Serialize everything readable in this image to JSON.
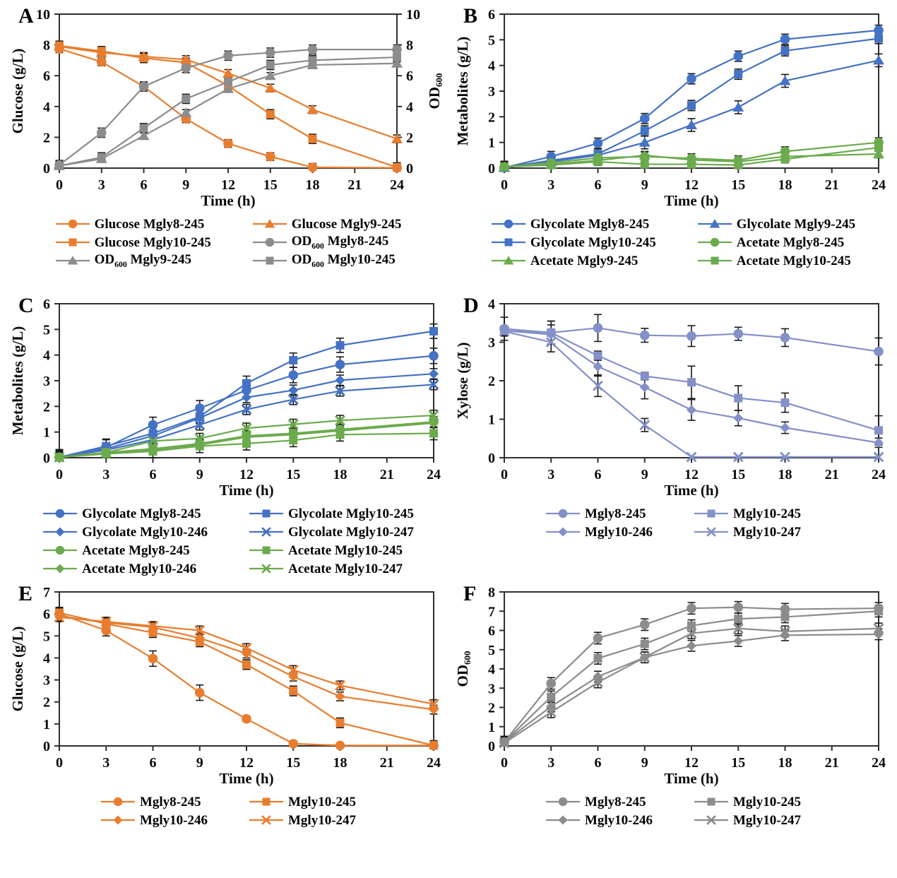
{
  "figure": {
    "background": "#FFFFFF",
    "description": "Six-panel fermentation time-course figure",
    "panel_letters": [
      "A",
      "B",
      "C",
      "D",
      "E",
      "F"
    ]
  },
  "colors": {
    "orange": "#E87D30",
    "gray": "#8C8C8C",
    "blue": "#4472C4",
    "green": "#6BAB4D",
    "periwinkle": "#8490C8",
    "error_bar": "#1A1A1A",
    "axis": "#2F2F2F"
  },
  "chart_data": [
    {
      "panel": "A",
      "type": "line",
      "xlabel": "Time (h)",
      "ylabel": "Glucose (g/L)",
      "ylabel_right": "OD600",
      "x": [
        0,
        3,
        6,
        9,
        12,
        15,
        18,
        24
      ],
      "xticks": [
        0,
        3,
        6,
        9,
        12,
        15,
        18,
        21,
        24
      ],
      "xlim": [
        0,
        24
      ],
      "ylim": [
        0,
        10
      ],
      "yticks": [
        0,
        2,
        4,
        6,
        8,
        10
      ],
      "right_axis": true,
      "grid": false,
      "legend_position": "bottom",
      "legend_cols": 2,
      "series": [
        {
          "name": "Glucose Mgly8-245",
          "color": "orange",
          "marker": "circle",
          "err": 0.25,
          "values": [
            7.75,
            6.9,
            5.3,
            3.2,
            1.6,
            0.75,
            0.05,
            0.02
          ]
        },
        {
          "name": "Glucose Mgly9-245",
          "color": "orange",
          "marker": "triangle",
          "err": 0.25,
          "values": [
            7.9,
            7.5,
            7.25,
            7.05,
            6.15,
            5.2,
            3.8,
            1.9
          ]
        },
        {
          "name": "Glucose Mgly10-245",
          "color": "orange",
          "marker": "square",
          "err": 0.3,
          "values": [
            7.95,
            7.6,
            7.15,
            6.85,
            5.35,
            3.5,
            1.9,
            0.05
          ]
        },
        {
          "name": "OD600 Mgly8-245",
          "color": "gray",
          "marker": "circle",
          "err": 0.3,
          "values": [
            0.2,
            2.3,
            5.3,
            6.5,
            7.3,
            7.5,
            7.7,
            7.7
          ]
        },
        {
          "name": "OD600 Mgly9-245",
          "color": "gray",
          "marker": "triangle",
          "err": 0.2,
          "values": [
            0.15,
            0.6,
            2.1,
            3.6,
            5.15,
            6.0,
            6.7,
            6.8
          ]
        },
        {
          "name": "OD600 Mgly10-245",
          "color": "gray",
          "marker": "square",
          "err": 0.3,
          "values": [
            0.15,
            0.7,
            2.6,
            4.5,
            5.6,
            6.7,
            7.0,
            7.2
          ]
        }
      ]
    },
    {
      "panel": "B",
      "type": "line",
      "xlabel": "Time (h)",
      "ylabel": "Metabolites (g/L)",
      "x": [
        0,
        3,
        6,
        9,
        12,
        15,
        18,
        24
      ],
      "xticks": [
        0,
        3,
        6,
        9,
        12,
        15,
        18,
        21,
        24
      ],
      "xlim": [
        0,
        24
      ],
      "ylim": [
        0,
        6
      ],
      "yticks": [
        0,
        1,
        2,
        3,
        4,
        5,
        6
      ],
      "right_axis": false,
      "grid": false,
      "legend_position": "bottom",
      "legend_cols": 2,
      "series": [
        {
          "name": "Glycolate Mgly8-245",
          "color": "blue",
          "marker": "circle",
          "err": 0.2,
          "values": [
            0.02,
            0.45,
            0.97,
            1.93,
            3.48,
            4.36,
            5.02,
            5.37
          ]
        },
        {
          "name": "Glycolate Mgly9-245",
          "color": "blue",
          "marker": "triangle",
          "err": 0.25,
          "values": [
            0.02,
            0.25,
            0.5,
            1.0,
            1.68,
            2.37,
            3.4,
            4.2
          ]
        },
        {
          "name": "Glycolate Mgly10-245",
          "color": "blue",
          "marker": "square",
          "err": 0.2,
          "values": [
            0.02,
            0.3,
            0.55,
            1.45,
            2.44,
            3.66,
            4.57,
            5.05
          ]
        },
        {
          "name": "Acetate Mgly8-245",
          "color": "green",
          "marker": "circle",
          "err": 0.18,
          "values": [
            0.05,
            0.2,
            0.4,
            0.45,
            0.38,
            0.3,
            0.65,
            1.0
          ]
        },
        {
          "name": "Acetate Mgly9-245",
          "color": "green",
          "marker": "triangle",
          "err": 0.15,
          "values": [
            0.05,
            0.15,
            0.3,
            0.5,
            0.32,
            0.25,
            0.45,
            0.55
          ]
        },
        {
          "name": "Acetate Mgly10-245",
          "color": "green",
          "marker": "square",
          "err": 0.15,
          "values": [
            0.05,
            0.12,
            0.25,
            0.15,
            0.15,
            0.12,
            0.35,
            0.8
          ]
        }
      ]
    },
    {
      "panel": "C",
      "type": "line",
      "xlabel": "Time (h)",
      "ylabel": "Metabolites (g/L)",
      "x": [
        0,
        3,
        6,
        9,
        12,
        15,
        18,
        24
      ],
      "xticks": [
        0,
        3,
        6,
        9,
        12,
        15,
        18,
        21,
        24
      ],
      "xlim": [
        0,
        24
      ],
      "ylim": [
        0,
        6
      ],
      "yticks": [
        0,
        1,
        2,
        3,
        4,
        5,
        6
      ],
      "right_axis": false,
      "grid": false,
      "legend_position": "bottom",
      "legend_cols": 2,
      "series": [
        {
          "name": "Glycolate Mgly8-245",
          "color": "blue",
          "marker": "circle",
          "err": 0.3,
          "values": [
            0.02,
            0.4,
            1.28,
            1.93,
            2.63,
            3.22,
            3.63,
            3.97
          ]
        },
        {
          "name": "Glycolate Mgly10-245",
          "color": "blue",
          "marker": "square",
          "err": 0.28,
          "values": [
            0.02,
            0.45,
            0.95,
            1.6,
            2.9,
            3.8,
            4.38,
            4.93
          ]
        },
        {
          "name": "Glycolate Mgly10-246",
          "color": "blue",
          "marker": "diamond",
          "err": 0.2,
          "values": [
            0.02,
            0.35,
            0.85,
            1.55,
            2.35,
            2.63,
            3.02,
            3.27
          ]
        },
        {
          "name": "Glycolate Mgly10-247",
          "color": "blue",
          "marker": "x",
          "err": 0.2,
          "values": [
            0.02,
            0.3,
            0.7,
            1.28,
            1.88,
            2.27,
            2.6,
            2.85
          ]
        },
        {
          "name": "Acetate Mgly8-245",
          "color": "green",
          "marker": "circle",
          "err": 0.2,
          "values": [
            0.02,
            0.2,
            0.35,
            0.55,
            0.85,
            0.95,
            1.1,
            1.4
          ]
        },
        {
          "name": "Acetate Mgly10-245",
          "color": "green",
          "marker": "square",
          "err": 0.25,
          "values": [
            0.02,
            0.15,
            0.25,
            0.45,
            0.55,
            0.68,
            0.9,
            0.95
          ]
        },
        {
          "name": "Acetate Mgly10-246",
          "color": "green",
          "marker": "diamond",
          "err": 0.18,
          "values": [
            0.02,
            0.18,
            0.3,
            0.5,
            0.8,
            0.9,
            1.05,
            1.35
          ]
        },
        {
          "name": "Acetate Mgly10-247",
          "color": "green",
          "marker": "x",
          "err": 0.2,
          "values": [
            0.02,
            0.2,
            0.65,
            0.75,
            1.15,
            1.3,
            1.45,
            1.65
          ]
        }
      ]
    },
    {
      "panel": "D",
      "type": "line",
      "xlabel": "Time (h)",
      "ylabel": "Xylose (g/L)",
      "x": [
        0,
        3,
        6,
        9,
        12,
        15,
        18,
        24
      ],
      "xticks": [
        0,
        3,
        6,
        9,
        12,
        15,
        18,
        21,
        24
      ],
      "xlim": [
        0,
        24
      ],
      "ylim": [
        0,
        4
      ],
      "yticks": [
        0,
        1,
        2,
        3,
        4
      ],
      "right_axis": false,
      "grid": false,
      "legend_position": "bottom",
      "legend_cols": 2,
      "series": [
        {
          "name": "Mgly8-245",
          "color": "periwinkle",
          "marker": "circle",
          "err": [
            0.3,
            0.3,
            0.35,
            0.18,
            0.27,
            0.17,
            0.23,
            0.35
          ],
          "values": [
            3.35,
            3.25,
            3.37,
            3.18,
            3.16,
            3.22,
            3.12,
            2.76
          ]
        },
        {
          "name": "Mgly10-245",
          "color": "periwinkle",
          "marker": "square",
          "err": [
            0.12,
            0.3,
            0.12,
            0.1,
            0.42,
            0.32,
            0.25,
            0.38
          ],
          "values": [
            3.3,
            3.25,
            2.65,
            2.12,
            1.96,
            1.55,
            1.43,
            0.71
          ]
        },
        {
          "name": "Mgly10-246",
          "color": "periwinkle",
          "marker": "diamond",
          "err": [
            0.1,
            0.25,
            0.25,
            0.3,
            0.27,
            0.2,
            0.15,
            0.12
          ],
          "values": [
            3.3,
            3.2,
            2.37,
            1.83,
            1.24,
            1.03,
            0.78,
            0.39
          ]
        },
        {
          "name": "Mgly10-247",
          "color": "periwinkle",
          "marker": "x",
          "err": [
            0.12,
            0.25,
            0.28,
            0.17,
            0,
            0,
            0,
            0
          ],
          "values": [
            3.28,
            3.0,
            1.87,
            0.85,
            0.02,
            0.02,
            0.02,
            0.02
          ]
        }
      ]
    },
    {
      "panel": "E",
      "type": "line",
      "xlabel": "Time (h)",
      "ylabel": "Glucose (g/L)",
      "x": [
        0,
        3,
        6,
        9,
        12,
        15,
        18,
        24
      ],
      "xticks": [
        0,
        3,
        6,
        9,
        12,
        15,
        18,
        21,
        24
      ],
      "xlim": [
        0,
        24
      ],
      "ylim": [
        0,
        7
      ],
      "yticks": [
        0,
        1,
        2,
        3,
        4,
        5,
        6,
        7
      ],
      "right_axis": false,
      "grid": false,
      "legend_position": "bottom",
      "legend_cols": 2,
      "series": [
        {
          "name": "Mgly8-245",
          "color": "orange",
          "marker": "circle",
          "err": [
            0.3,
            0.25,
            0.35,
            0.35,
            0.12,
            0.12,
            0.05,
            0.05
          ],
          "values": [
            6.0,
            5.25,
            3.97,
            2.42,
            1.23,
            0.1,
            0.02,
            0.02
          ]
        },
        {
          "name": "Mgly10-245",
          "color": "orange",
          "marker": "square",
          "err": 0.22,
          "values": [
            6.05,
            5.55,
            5.15,
            4.73,
            3.7,
            2.5,
            1.05,
            0.02
          ]
        },
        {
          "name": "Mgly10-246",
          "color": "orange",
          "marker": "diamond",
          "err": 0.2,
          "values": [
            5.9,
            5.6,
            5.4,
            4.9,
            4.2,
            3.15,
            2.25,
            1.65
          ]
        },
        {
          "name": "Mgly10-247",
          "color": "orange",
          "marker": "x",
          "err": 0.2,
          "values": [
            5.85,
            5.65,
            5.45,
            5.25,
            4.45,
            3.45,
            2.75,
            1.9
          ]
        }
      ]
    },
    {
      "panel": "F",
      "type": "line",
      "xlabel": "Time (h)",
      "ylabel": "OD600",
      "x": [
        0,
        3,
        6,
        9,
        12,
        15,
        18,
        24
      ],
      "xticks": [
        0,
        3,
        6,
        9,
        12,
        15,
        18,
        21,
        24
      ],
      "xlim": [
        0,
        24
      ],
      "ylim": [
        0,
        8
      ],
      "yticks": [
        0,
        1,
        2,
        3,
        4,
        5,
        6,
        7,
        8
      ],
      "right_axis": false,
      "grid": false,
      "legend_position": "bottom",
      "legend_cols": 2,
      "series": [
        {
          "name": "Mgly8-245",
          "color": "gray",
          "marker": "circle",
          "err": 0.3,
          "values": [
            0.2,
            3.25,
            5.6,
            6.3,
            7.15,
            7.2,
            7.1,
            7.15
          ]
        },
        {
          "name": "Mgly10-245",
          "color": "gray",
          "marker": "square",
          "err": 0.3,
          "values": [
            0.2,
            2.55,
            4.55,
            5.3,
            6.25,
            6.6,
            6.7,
            7.0
          ]
        },
        {
          "name": "Mgly10-246",
          "color": "gray",
          "marker": "diamond",
          "err": 0.28,
          "values": [
            0.2,
            2.05,
            3.6,
            4.6,
            5.2,
            5.45,
            5.75,
            5.8
          ]
        },
        {
          "name": "Mgly10-247",
          "color": "gray",
          "marker": "x",
          "err": 0.28,
          "values": [
            0.15,
            1.75,
            3.3,
            4.6,
            5.85,
            6.1,
            5.95,
            6.1
          ]
        }
      ]
    }
  ]
}
